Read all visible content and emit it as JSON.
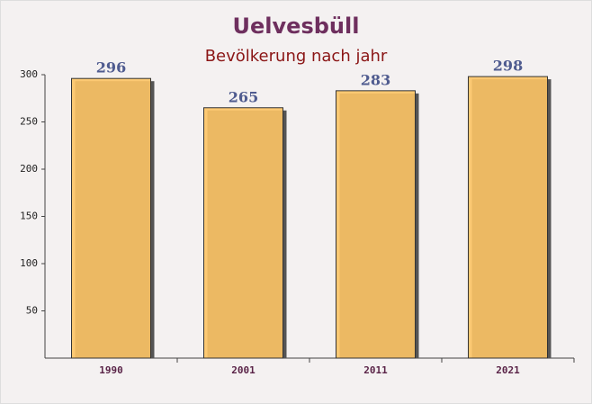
{
  "chart_data": {
    "type": "bar",
    "title": "Uelvesbüll",
    "subtitle": "Bevölkerung nach jahr",
    "categories": [
      "1990",
      "2001",
      "2011",
      "2021"
    ],
    "values": [
      296,
      265,
      283,
      298
    ],
    "color": "#fdc465",
    "ylim": [
      0,
      300
    ],
    "yticks": [
      50,
      100,
      150,
      200,
      250,
      300
    ],
    "grid": false
  }
}
